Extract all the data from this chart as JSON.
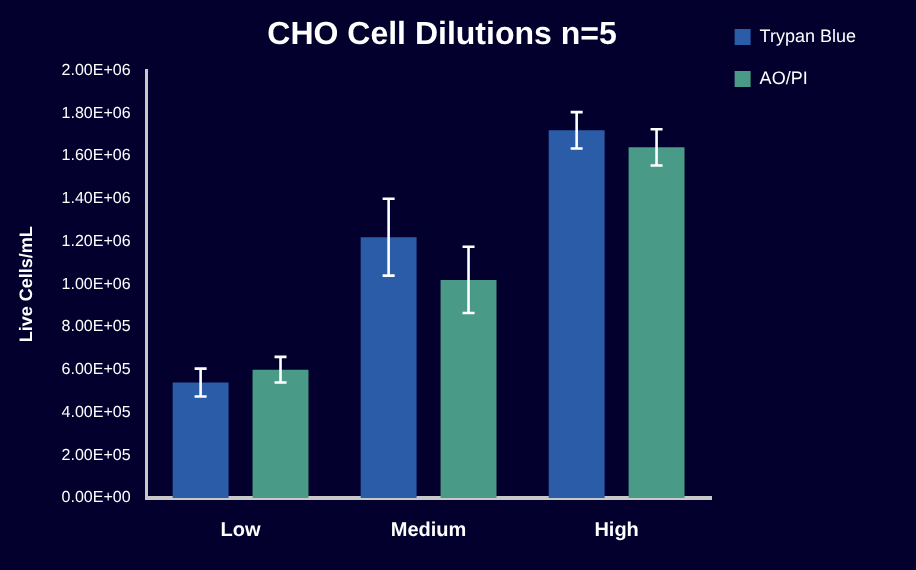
{
  "chart_data": {
    "type": "bar",
    "title": "CHO Cell Dilutions n=5",
    "ylabel": "Live Cells/mL",
    "categories": [
      "Low",
      "Medium",
      "High"
    ],
    "series": [
      {
        "name": "Trypan Blue",
        "color": "#2b5ca8",
        "values": [
          540000,
          1220000,
          1720000
        ],
        "errors": [
          65000,
          180000,
          85000
        ]
      },
      {
        "name": "AO/PI",
        "color": "#4a9a88",
        "values": [
          600000,
          1020000,
          1640000
        ],
        "errors": [
          60000,
          155000,
          85000
        ]
      }
    ],
    "ylim": [
      0,
      2000000
    ],
    "yticks": [
      {
        "value": 0,
        "label": "0.00E+00"
      },
      {
        "value": 200000,
        "label": "2.00E+05"
      },
      {
        "value": 400000,
        "label": "4.00E+05"
      },
      {
        "value": 600000,
        "label": "6.00E+05"
      },
      {
        "value": 800000,
        "label": "8.00E+05"
      },
      {
        "value": 1000000,
        "label": "1.00E+06"
      },
      {
        "value": 1200000,
        "label": "1.20E+06"
      },
      {
        "value": 1400000,
        "label": "1.40E+06"
      },
      {
        "value": 1600000,
        "label": "1.60E+06"
      },
      {
        "value": 1800000,
        "label": "1.80E+06"
      },
      {
        "value": 2000000,
        "label": "2.00E+06"
      }
    ],
    "grid": false,
    "legend": "top right"
  }
}
